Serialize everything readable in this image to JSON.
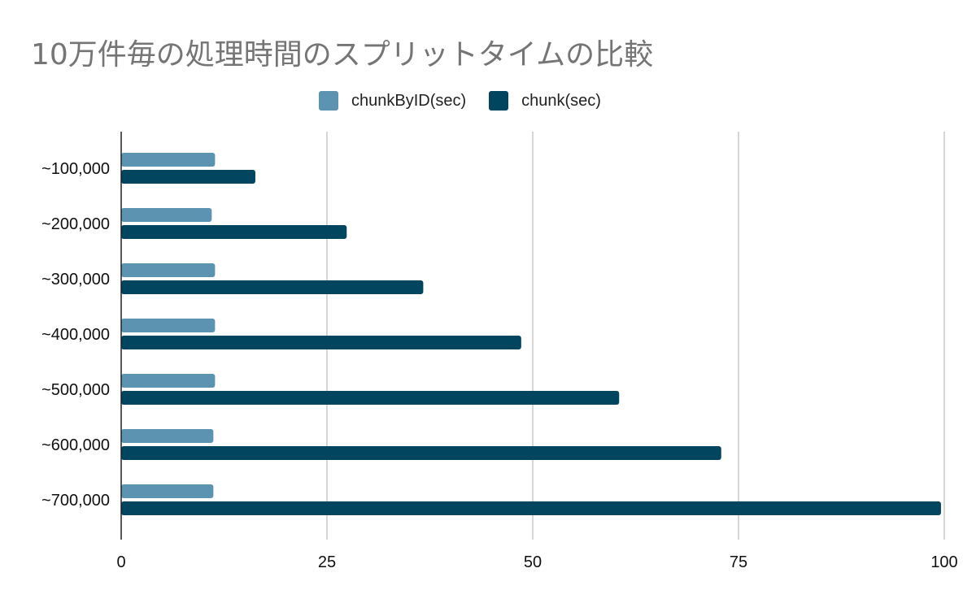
{
  "chart_data": {
    "type": "bar",
    "orientation": "horizontal",
    "title": "10万件毎の処理時間のスプリットタイムの比較",
    "categories": [
      "~100,000",
      "~200,000",
      "~300,000",
      "~400,000",
      "~500,000",
      "~600,000",
      "~700,000"
    ],
    "series": [
      {
        "name": "chunkByID(sec)",
        "color": "#5b93b0",
        "values": [
          11.4,
          11.0,
          11.4,
          11.4,
          11.4,
          11.2,
          11.2
        ]
      },
      {
        "name": "chunk(sec)",
        "color": "#02455f",
        "values": [
          16.3,
          27.4,
          36.7,
          48.6,
          60.5,
          72.9,
          99.6
        ]
      }
    ],
    "xlim": [
      0,
      100
    ],
    "xticks": [
      "0",
      "25",
      "50",
      "75",
      "100"
    ],
    "xlabel": "",
    "ylabel": "",
    "grid": true,
    "legend_position": "top"
  }
}
